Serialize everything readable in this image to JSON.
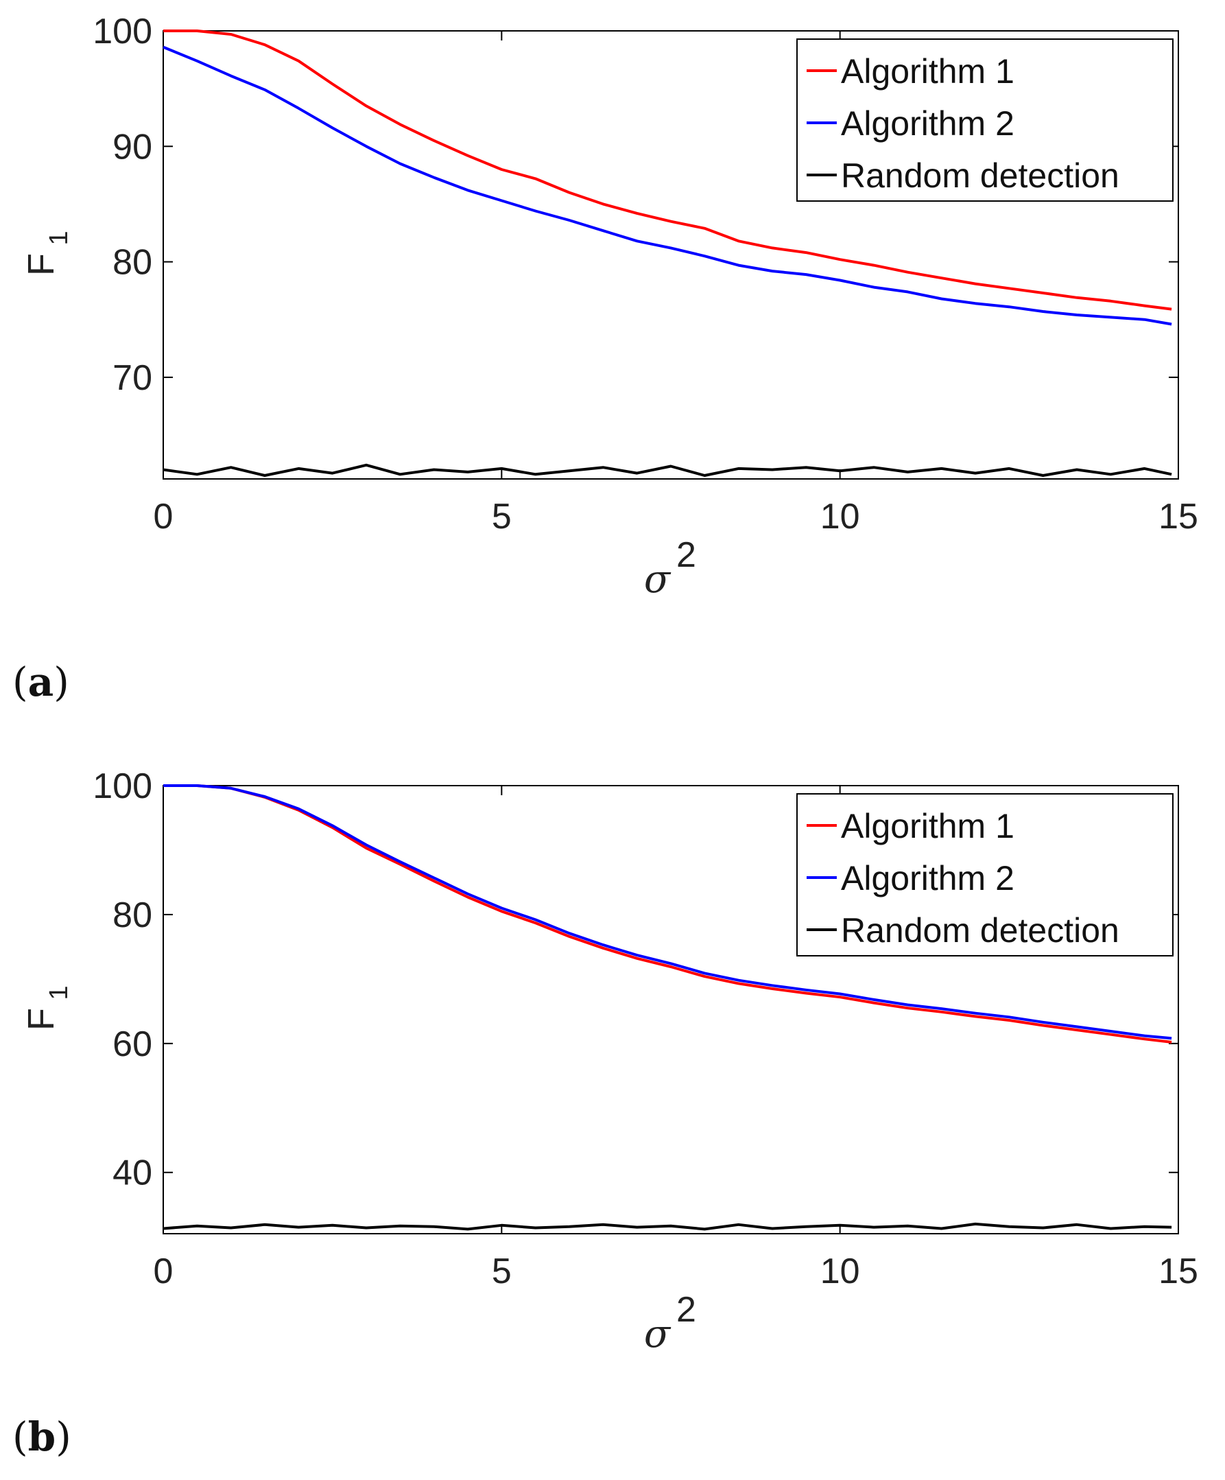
{
  "panels": [
    {
      "label_open": "(",
      "label_letter": "a",
      "label_close": ")"
    },
    {
      "label_open": "(",
      "label_letter": "b",
      "label_close": ")"
    }
  ],
  "chart_data": [
    {
      "type": "line",
      "title": "",
      "xlabel": "σ",
      "xlabel_sup": "2",
      "ylabel": "F",
      "ylabel_sub": "1",
      "xlim": [
        0,
        15
      ],
      "ylim": [
        61.2,
        100
      ],
      "xticks": [
        0,
        5,
        10,
        15
      ],
      "yticks": [
        70,
        80,
        90,
        100
      ],
      "grid": false,
      "legend_position": "top-right",
      "series": [
        {
          "name": "Algorithm 1",
          "color": "#ff0000",
          "x": [
            0,
            0.5,
            1,
            1.5,
            2,
            2.5,
            3,
            3.5,
            4,
            4.5,
            5,
            5.5,
            6,
            6.5,
            7,
            7.5,
            8,
            8.5,
            9,
            9.5,
            10,
            10.5,
            11,
            11.5,
            12,
            12.5,
            13,
            13.5,
            14,
            14.5,
            14.9
          ],
          "y": [
            100,
            100,
            99.7,
            98.8,
            97.4,
            95.4,
            93.5,
            91.9,
            90.5,
            89.2,
            88,
            87.2,
            86,
            85,
            84.2,
            83.5,
            82.9,
            81.8,
            81.2,
            80.8,
            80.2,
            79.7,
            79.1,
            78.6,
            78.1,
            77.7,
            77.3,
            76.9,
            76.6,
            76.2,
            75.9
          ]
        },
        {
          "name": "Algorithm 2",
          "color": "#0000ff",
          "x": [
            0,
            0.5,
            1,
            1.5,
            2,
            2.5,
            3,
            3.5,
            4,
            4.5,
            5,
            5.5,
            6,
            6.5,
            7,
            7.5,
            8,
            8.5,
            9,
            9.5,
            10,
            10.5,
            11,
            11.5,
            12,
            12.5,
            13,
            13.5,
            14,
            14.5,
            14.9
          ],
          "y": [
            98.6,
            97.4,
            96.1,
            94.9,
            93.3,
            91.6,
            90,
            88.5,
            87.3,
            86.2,
            85.3,
            84.4,
            83.6,
            82.7,
            81.8,
            81.2,
            80.5,
            79.7,
            79.2,
            78.9,
            78.4,
            77.8,
            77.4,
            76.8,
            76.4,
            76.1,
            75.7,
            75.4,
            75.2,
            75,
            74.6
          ]
        },
        {
          "name": "Random detection",
          "color": "#000000",
          "x": [
            0,
            0.5,
            1,
            1.5,
            2,
            2.5,
            3,
            3.5,
            4,
            4.5,
            5,
            5.5,
            6,
            6.5,
            7,
            7.5,
            8,
            8.5,
            9,
            9.5,
            10,
            10.5,
            11,
            11.5,
            12,
            12.5,
            13,
            13.5,
            14,
            14.5,
            14.9
          ],
          "y": [
            62,
            61.6,
            62.2,
            61.5,
            62.1,
            61.7,
            62.4,
            61.6,
            62,
            61.8,
            62.1,
            61.6,
            61.9,
            62.2,
            61.7,
            62.3,
            61.5,
            62.1,
            62,
            62.2,
            61.9,
            62.2,
            61.8,
            62.1,
            61.7,
            62.1,
            61.5,
            62,
            61.6,
            62.1,
            61.6
          ]
        }
      ]
    },
    {
      "type": "line",
      "title": "",
      "xlabel": "σ",
      "xlabel_sup": "2",
      "ylabel": "F",
      "ylabel_sub": "1",
      "xlim": [
        0,
        15
      ],
      "ylim": [
        30.5,
        100
      ],
      "xticks": [
        0,
        5,
        10,
        15
      ],
      "yticks": [
        40,
        60,
        80,
        100
      ],
      "grid": false,
      "legend_position": "top-right",
      "series": [
        {
          "name": "Algorithm 1",
          "color": "#ff0000",
          "x": [
            0,
            0.5,
            1,
            1.5,
            2,
            2.5,
            3,
            3.5,
            4,
            4.5,
            5,
            5.5,
            6,
            6.5,
            7,
            7.5,
            8,
            8.5,
            9,
            9.5,
            10,
            10.5,
            11,
            11.5,
            12,
            12.5,
            13,
            13.5,
            14,
            14.5,
            14.9
          ],
          "y": [
            100,
            100,
            99.6,
            98.2,
            96.2,
            93.5,
            90.3,
            87.8,
            85.2,
            82.7,
            80.5,
            78.7,
            76.6,
            74.8,
            73.2,
            71.9,
            70.4,
            69.3,
            68.5,
            67.8,
            67.2,
            66.3,
            65.5,
            64.9,
            64.2,
            63.6,
            62.8,
            62.1,
            61.4,
            60.7,
            60.2
          ]
        },
        {
          "name": "Algorithm 2",
          "color": "#0000ff",
          "x": [
            0,
            0.5,
            1,
            1.5,
            2,
            2.5,
            3,
            3.5,
            4,
            4.5,
            5,
            5.5,
            6,
            6.5,
            7,
            7.5,
            8,
            8.5,
            9,
            9.5,
            10,
            10.5,
            11,
            11.5,
            12,
            12.5,
            13,
            13.5,
            14,
            14.5,
            14.9
          ],
          "y": [
            100,
            100,
            99.6,
            98.3,
            96.4,
            93.8,
            90.8,
            88.2,
            85.7,
            83.2,
            81,
            79.2,
            77.1,
            75.3,
            73.7,
            72.4,
            70.9,
            69.8,
            69,
            68.3,
            67.7,
            66.8,
            66,
            65.4,
            64.7,
            64.1,
            63.3,
            62.6,
            61.9,
            61.2,
            60.8
          ]
        },
        {
          "name": "Random detection",
          "color": "#000000",
          "x": [
            0,
            0.5,
            1,
            1.5,
            2,
            2.5,
            3,
            3.5,
            4,
            4.5,
            5,
            5.5,
            6,
            6.5,
            7,
            7.5,
            8,
            8.5,
            9,
            9.5,
            10,
            10.5,
            11,
            11.5,
            12,
            12.5,
            13,
            13.5,
            14,
            14.5,
            14.9
          ],
          "y": [
            31.3,
            31.7,
            31.4,
            31.9,
            31.5,
            31.8,
            31.4,
            31.7,
            31.6,
            31.2,
            31.8,
            31.4,
            31.6,
            31.9,
            31.5,
            31.7,
            31.2,
            31.9,
            31.3,
            31.6,
            31.8,
            31.5,
            31.7,
            31.3,
            32,
            31.6,
            31.4,
            31.9,
            31.3,
            31.6,
            31.5
          ]
        }
      ]
    }
  ]
}
